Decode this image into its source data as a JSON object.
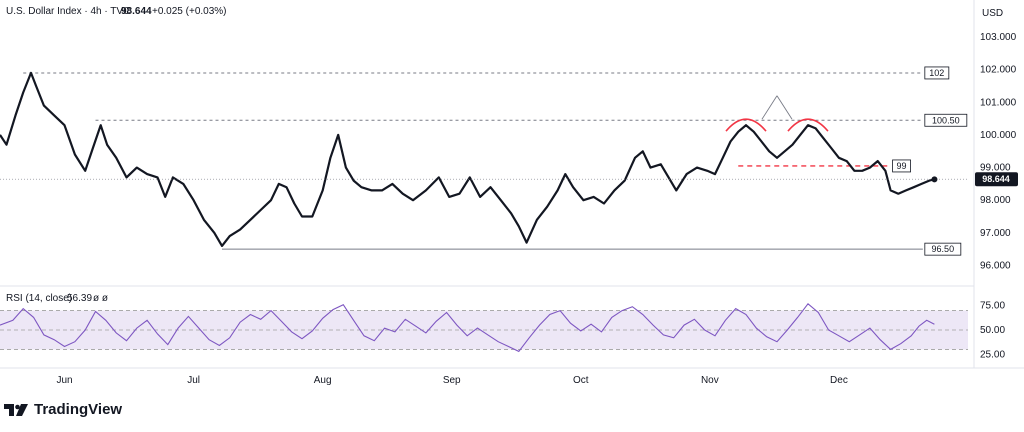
{
  "chart_data": {
    "type": "line",
    "legend": {
      "symbol": "U.S. Dollar Index · 4h · TVC",
      "last": "98.644",
      "change": "+0.025 (+0.03%)",
      "rsi": "RSI (14, close)",
      "rsi_value": "56.39",
      "rsi_extra": "ø  ø"
    },
    "currency": "USD",
    "y_ticks": [
      "103.000",
      "102.000",
      "101.000",
      "100.000",
      "99.000",
      "98.000",
      "97.000",
      "96.000"
    ],
    "y_tick_values": [
      103,
      102,
      101,
      100,
      99,
      98,
      97,
      96
    ],
    "ylim": [
      95.8,
      103.4
    ],
    "x_ticks": [
      "Jun",
      "Jul",
      "Aug",
      "Sep",
      "Oct",
      "Nov",
      "Dec"
    ],
    "x_tick_positions": [
      0.5,
      1.5,
      2.5,
      3.5,
      4.5,
      5.5,
      6.5
    ],
    "xlim": [
      0,
      7.5
    ],
    "price_points": [
      [
        0.0,
        100.0
      ],
      [
        0.05,
        99.7
      ],
      [
        0.12,
        100.6
      ],
      [
        0.18,
        101.3
      ],
      [
        0.24,
        101.9
      ],
      [
        0.28,
        101.5
      ],
      [
        0.34,
        100.9
      ],
      [
        0.42,
        100.6
      ],
      [
        0.5,
        100.3
      ],
      [
        0.58,
        99.4
      ],
      [
        0.66,
        98.9
      ],
      [
        0.72,
        99.6
      ],
      [
        0.78,
        100.3
      ],
      [
        0.83,
        99.7
      ],
      [
        0.9,
        99.3
      ],
      [
        0.98,
        98.7
      ],
      [
        1.06,
        99.0
      ],
      [
        1.14,
        98.8
      ],
      [
        1.22,
        98.7
      ],
      [
        1.28,
        98.1
      ],
      [
        1.34,
        98.7
      ],
      [
        1.42,
        98.5
      ],
      [
        1.5,
        98.0
      ],
      [
        1.58,
        97.4
      ],
      [
        1.66,
        97.0
      ],
      [
        1.72,
        96.6
      ],
      [
        1.78,
        96.9
      ],
      [
        1.86,
        97.1
      ],
      [
        1.94,
        97.4
      ],
      [
        2.02,
        97.7
      ],
      [
        2.1,
        98.0
      ],
      [
        2.16,
        98.5
      ],
      [
        2.22,
        98.4
      ],
      [
        2.28,
        97.9
      ],
      [
        2.34,
        97.5
      ],
      [
        2.42,
        97.5
      ],
      [
        2.5,
        98.3
      ],
      [
        2.56,
        99.3
      ],
      [
        2.62,
        100.0
      ],
      [
        2.68,
        99.0
      ],
      [
        2.74,
        98.6
      ],
      [
        2.8,
        98.4
      ],
      [
        2.88,
        98.3
      ],
      [
        2.96,
        98.3
      ],
      [
        3.04,
        98.5
      ],
      [
        3.12,
        98.2
      ],
      [
        3.2,
        98.0
      ],
      [
        3.3,
        98.3
      ],
      [
        3.4,
        98.7
      ],
      [
        3.48,
        98.1
      ],
      [
        3.56,
        98.2
      ],
      [
        3.64,
        98.7
      ],
      [
        3.72,
        98.1
      ],
      [
        3.8,
        98.4
      ],
      [
        3.88,
        98.0
      ],
      [
        3.96,
        97.6
      ],
      [
        4.02,
        97.2
      ],
      [
        4.08,
        96.7
      ],
      [
        4.16,
        97.4
      ],
      [
        4.24,
        97.8
      ],
      [
        4.32,
        98.3
      ],
      [
        4.38,
        98.8
      ],
      [
        4.44,
        98.4
      ],
      [
        4.52,
        98.0
      ],
      [
        4.6,
        98.1
      ],
      [
        4.68,
        97.9
      ],
      [
        4.76,
        98.3
      ],
      [
        4.84,
        98.6
      ],
      [
        4.92,
        99.3
      ],
      [
        4.98,
        99.5
      ],
      [
        5.04,
        99.0
      ],
      [
        5.12,
        99.1
      ],
      [
        5.18,
        98.7
      ],
      [
        5.24,
        98.3
      ],
      [
        5.32,
        98.8
      ],
      [
        5.4,
        99.0
      ],
      [
        5.48,
        98.9
      ],
      [
        5.54,
        98.8
      ],
      [
        5.6,
        99.3
      ],
      [
        5.66,
        99.8
      ],
      [
        5.72,
        100.1
      ],
      [
        5.78,
        100.3
      ],
      [
        5.84,
        100.1
      ],
      [
        5.9,
        99.8
      ],
      [
        5.96,
        99.5
      ],
      [
        6.02,
        99.3
      ],
      [
        6.08,
        99.5
      ],
      [
        6.14,
        99.7
      ],
      [
        6.2,
        100.0
      ],
      [
        6.26,
        100.3
      ],
      [
        6.32,
        100.2
      ],
      [
        6.38,
        99.9
      ],
      [
        6.44,
        99.6
      ],
      [
        6.5,
        99.3
      ],
      [
        6.56,
        99.2
      ],
      [
        6.62,
        98.9
      ],
      [
        6.68,
        98.9
      ],
      [
        6.74,
        99.0
      ],
      [
        6.8,
        99.2
      ],
      [
        6.86,
        98.9
      ],
      [
        6.9,
        98.3
      ],
      [
        6.96,
        98.2
      ],
      [
        7.02,
        98.3
      ],
      [
        7.08,
        98.4
      ],
      [
        7.14,
        98.5
      ],
      [
        7.2,
        98.6
      ],
      [
        7.24,
        98.64
      ]
    ],
    "levels": [
      {
        "label": "102",
        "value": 101.9,
        "style": "dashed",
        "x_start": 0.18
      },
      {
        "label": "100.50",
        "value": 100.45,
        "style": "dashed",
        "x_start": 0.74
      },
      {
        "label": "99",
        "value": 99.05,
        "style": "red-dashed",
        "x_start": 5.72
      },
      {
        "label": "96.50",
        "value": 96.5,
        "style": "solid",
        "x_start": 1.72
      }
    ],
    "current_price": {
      "label": "98.644",
      "value": 98.644
    },
    "pattern": {
      "name": "double top",
      "peaks": [
        [
          5.78,
          100.3
        ],
        [
          6.26,
          100.3
        ]
      ]
    },
    "rsi": {
      "ticks": [
        "75.00",
        "50.00",
        "25.00"
      ],
      "tick_values": [
        75,
        50,
        25
      ],
      "ylim": [
        15,
        85
      ],
      "upper": 70,
      "middle": 50,
      "lower": 30,
      "points": [
        [
          0.0,
          55
        ],
        [
          0.1,
          60
        ],
        [
          0.18,
          72
        ],
        [
          0.26,
          63
        ],
        [
          0.34,
          45
        ],
        [
          0.42,
          40
        ],
        [
          0.5,
          33
        ],
        [
          0.58,
          38
        ],
        [
          0.66,
          50
        ],
        [
          0.74,
          69
        ],
        [
          0.82,
          60
        ],
        [
          0.9,
          47
        ],
        [
          0.98,
          39
        ],
        [
          1.06,
          52
        ],
        [
          1.14,
          60
        ],
        [
          1.22,
          46
        ],
        [
          1.3,
          35
        ],
        [
          1.38,
          52
        ],
        [
          1.46,
          64
        ],
        [
          1.54,
          52
        ],
        [
          1.62,
          40
        ],
        [
          1.7,
          34
        ],
        [
          1.78,
          42
        ],
        [
          1.86,
          58
        ],
        [
          1.94,
          66
        ],
        [
          2.02,
          61
        ],
        [
          2.1,
          70
        ],
        [
          2.18,
          59
        ],
        [
          2.26,
          48
        ],
        [
          2.34,
          41
        ],
        [
          2.42,
          49
        ],
        [
          2.5,
          62
        ],
        [
          2.58,
          71
        ],
        [
          2.66,
          76
        ],
        [
          2.74,
          60
        ],
        [
          2.82,
          44
        ],
        [
          2.9,
          39
        ],
        [
          2.98,
          52
        ],
        [
          3.06,
          48
        ],
        [
          3.14,
          61
        ],
        [
          3.22,
          54
        ],
        [
          3.3,
          47
        ],
        [
          3.38,
          59
        ],
        [
          3.46,
          68
        ],
        [
          3.54,
          55
        ],
        [
          3.62,
          44
        ],
        [
          3.7,
          52
        ],
        [
          3.78,
          45
        ],
        [
          3.86,
          38
        ],
        [
          3.94,
          33
        ],
        [
          4.02,
          28
        ],
        [
          4.1,
          42
        ],
        [
          4.18,
          55
        ],
        [
          4.26,
          66
        ],
        [
          4.34,
          70
        ],
        [
          4.42,
          57
        ],
        [
          4.5,
          49
        ],
        [
          4.58,
          56
        ],
        [
          4.66,
          48
        ],
        [
          4.74,
          63
        ],
        [
          4.82,
          70
        ],
        [
          4.9,
          74
        ],
        [
          4.98,
          66
        ],
        [
          5.06,
          55
        ],
        [
          5.14,
          45
        ],
        [
          5.22,
          42
        ],
        [
          5.3,
          55
        ],
        [
          5.38,
          61
        ],
        [
          5.46,
          50
        ],
        [
          5.54,
          44
        ],
        [
          5.62,
          60
        ],
        [
          5.7,
          72
        ],
        [
          5.78,
          66
        ],
        [
          5.86,
          52
        ],
        [
          5.94,
          43
        ],
        [
          6.02,
          38
        ],
        [
          6.1,
          50
        ],
        [
          6.18,
          63
        ],
        [
          6.26,
          77
        ],
        [
          6.34,
          68
        ],
        [
          6.42,
          50
        ],
        [
          6.5,
          44
        ],
        [
          6.58,
          38
        ],
        [
          6.66,
          45
        ],
        [
          6.74,
          52
        ],
        [
          6.82,
          40
        ],
        [
          6.9,
          30
        ],
        [
          6.98,
          36
        ],
        [
          7.06,
          44
        ],
        [
          7.12,
          54
        ],
        [
          7.18,
          60
        ],
        [
          7.24,
          56
        ]
      ]
    }
  },
  "branding": {
    "name": "TradingView"
  },
  "colors": {
    "price_line": "#131722",
    "rsi_line": "#7e57c2",
    "rsi_band": "#ede7f6",
    "pattern": "#f23645",
    "level": "#787b86",
    "axis_text": "#131722"
  }
}
